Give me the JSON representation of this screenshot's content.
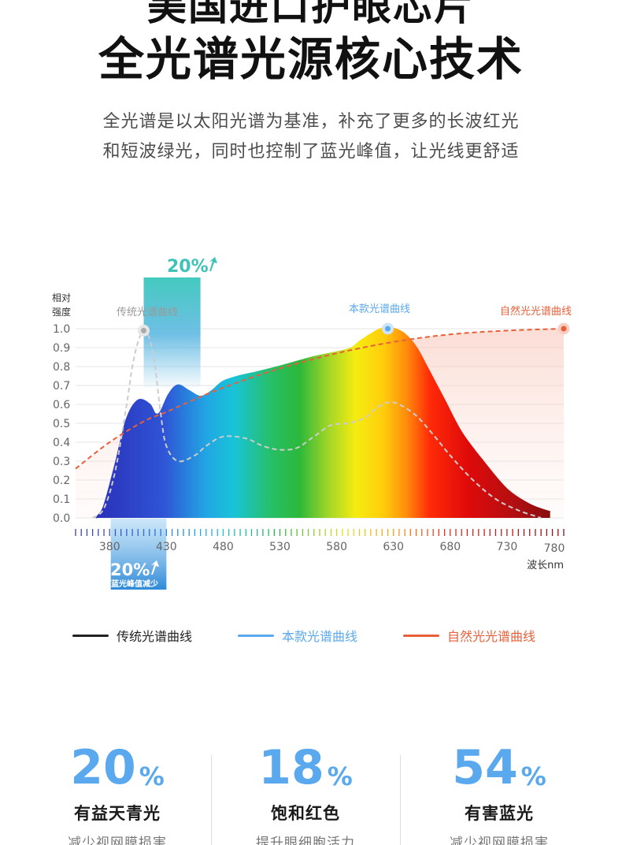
{
  "header": {
    "title_cut": "美国进口护眼芯片",
    "title": "全光谱光源核心技术",
    "subtitle_lines": [
      "全光谱是以太阳光谱为基准，补充了更多的长波红光",
      "和短波绿光，同时也控制了蓝光峰值，让光线更舒适"
    ]
  },
  "chart_data": {
    "type": "line",
    "ylabel": "相对\n强度",
    "xlabel": "波长nm",
    "xlim": [
      350,
      780
    ],
    "ylim": [
      0,
      1.0
    ],
    "y_ticks": [
      "0.0",
      "0.1",
      "0.2",
      "0.3",
      "0.4",
      "0.5",
      "0.6",
      "0.7",
      "0.8",
      "0.9",
      "1.0"
    ],
    "x_ticks": [
      380,
      430,
      480,
      530,
      580,
      630,
      680,
      730,
      780
    ],
    "grid": true,
    "series": [
      {
        "name": "传统光谱曲线",
        "color": "#cccccc",
        "style": "dashed",
        "x": [
          365,
          375,
          385,
          395,
          400,
          405,
          410,
          415,
          420,
          425,
          430,
          440,
          455,
          465,
          480,
          500,
          515,
          530,
          545,
          560,
          575,
          590,
          605,
          615,
          625,
          635,
          650,
          665,
          680,
          700,
          720,
          740,
          760
        ],
        "y": [
          0.0,
          0.05,
          0.25,
          0.6,
          0.8,
          0.93,
          0.99,
          0.95,
          0.8,
          0.55,
          0.38,
          0.3,
          0.33,
          0.38,
          0.43,
          0.42,
          0.38,
          0.36,
          0.37,
          0.43,
          0.49,
          0.5,
          0.53,
          0.58,
          0.61,
          0.6,
          0.54,
          0.44,
          0.33,
          0.2,
          0.1,
          0.04,
          0.0
        ]
      },
      {
        "name": "本款光谱曲线",
        "color": "#5aa8ee",
        "style": "solid",
        "x": [
          368,
          375,
          385,
          395,
          405,
          415,
          420,
          425,
          432,
          440,
          450,
          460,
          470,
          480,
          495,
          510,
          530,
          560,
          590,
          600,
          610,
          620,
          630,
          640,
          650,
          660,
          675,
          690,
          710,
          730,
          750,
          768
        ],
        "y": [
          0.0,
          0.06,
          0.28,
          0.52,
          0.62,
          0.6,
          0.55,
          0.56,
          0.65,
          0.7,
          0.67,
          0.64,
          0.67,
          0.72,
          0.75,
          0.77,
          0.8,
          0.85,
          0.89,
          0.93,
          0.97,
          1.0,
          1.0,
          0.97,
          0.9,
          0.79,
          0.62,
          0.45,
          0.29,
          0.15,
          0.07,
          0.03
        ]
      },
      {
        "name": "自然光光谱曲线",
        "color": "#e8603a",
        "style": "dashed",
        "x": [
          350,
          380,
          410,
          430,
          460,
          490,
          530,
          580,
          630,
          680,
          730,
          780
        ],
        "y": [
          0.26,
          0.4,
          0.51,
          0.56,
          0.64,
          0.71,
          0.79,
          0.87,
          0.93,
          0.97,
          0.99,
          1.0
        ]
      }
    ],
    "series_labels": [
      "传统光谱曲线",
      "本款光谱曲线",
      "自然光光谱曲线"
    ],
    "annotations": {
      "top_badge": "20%",
      "bottom_badge": "20%",
      "bottom_caption": "蓝光峰值减少"
    }
  },
  "legend": [
    {
      "label": "传统光谱曲线",
      "color": "#222222"
    },
    {
      "label": "本款光谱曲线",
      "color": "#5aa8ee"
    },
    {
      "label": "自然光光谱曲线",
      "color": "#e8603a"
    }
  ],
  "stats": [
    {
      "value": "20",
      "unit": "%",
      "label": "有益天青光",
      "desc": "减少视网膜损害"
    },
    {
      "value": "18",
      "unit": "%",
      "label": "饱和红色",
      "desc": "提升眼细胞活力"
    },
    {
      "value": "54",
      "unit": "%",
      "label": "有害蓝光",
      "desc": "减少视网膜损害"
    }
  ],
  "colors": {
    "accent": "#5aa8ee",
    "natural": "#e8603a",
    "traditional": "#222222"
  }
}
